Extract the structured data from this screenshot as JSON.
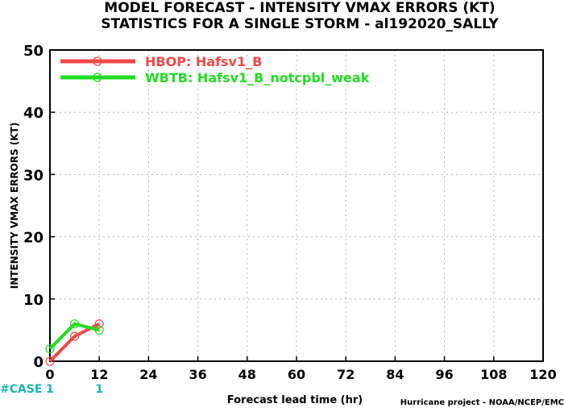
{
  "chart_data": {
    "type": "line",
    "title": "MODEL FORECAST - INTENSITY VMAX ERRORS (KT)",
    "subtitle": "STATISTICS FOR A SINGLE STORM - al192020_SALLY",
    "xlabel": "Forecast lead time (hr)",
    "ylabel": "INTENSITY VMAX ERRORS (KT)",
    "xlim": [
      0,
      120
    ],
    "ylim": [
      0,
      50
    ],
    "xticks": [
      0,
      12,
      24,
      36,
      48,
      60,
      72,
      84,
      96,
      108,
      120
    ],
    "yticks": [
      0,
      10,
      20,
      30,
      40,
      50
    ],
    "grid": true,
    "legend_position": "top-left",
    "series": [
      {
        "name": "HBOP: Hafsv1_B",
        "color": "#f04848",
        "x": [
          0,
          6,
          12
        ],
        "y": [
          0,
          4,
          6
        ]
      },
      {
        "name": "WBTB: Hafsv1_B_notcpbl_weak",
        "color": "#22dd22",
        "x": [
          0,
          6,
          12
        ],
        "y": [
          2,
          6,
          5
        ]
      }
    ],
    "case_row": {
      "label": "#CASE",
      "color": "#19b3b3",
      "entries": [
        {
          "x": 0,
          "text": "1"
        },
        {
          "x": 12,
          "text": "1"
        }
      ]
    },
    "credit": "Hurricane project - NOAA/NCEP/EMC"
  }
}
